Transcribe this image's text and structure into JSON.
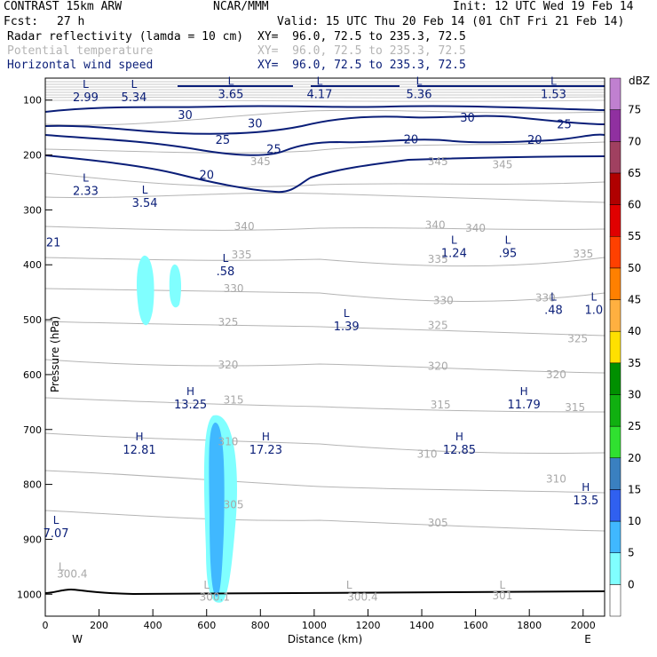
{
  "header": {
    "model": "CONTRAST 15km ARW",
    "org": "NCAR/MMM",
    "init": "Init: 12 UTC Wed 19 Feb 14",
    "fcst_label": "Fcst:",
    "fcst_value": "27 h",
    "valid": "Valid: 15 UTC Thu 20 Feb 14 (01 ChT Fri 21 Feb 14)"
  },
  "fields": [
    {
      "name": "Radar reflectivity (lamda = 10 cm)",
      "xy": "XY=  96.0, 72.5 to 235.3, 72.5",
      "color": "#000000"
    },
    {
      "name": "Potential temperature",
      "xy": "XY=  96.0, 72.5 to 235.3, 72.5",
      "color": "#b4b4b4"
    },
    {
      "name": "Horizontal wind speed",
      "xy": "XY=  96.0, 72.5 to 235.3, 72.5",
      "color": "#0a1e78"
    }
  ],
  "chart_data": {
    "type": "cross-section",
    "xlabel": "Distance (km)",
    "ylabel": "Pressure (hPa)",
    "xlim": [
      0,
      2080
    ],
    "ylim": [
      1040,
      60
    ],
    "x_ticks": [
      "0",
      "200",
      "400",
      "600",
      "800",
      "1000",
      "1200",
      "1400",
      "1600",
      "1800",
      "2000"
    ],
    "x_tick_values": [
      0,
      200,
      400,
      600,
      800,
      1000,
      1200,
      1400,
      1600,
      1800,
      2000
    ],
    "y_ticks": [
      "100",
      "200",
      "300",
      "400",
      "500",
      "600",
      "700",
      "800",
      "900",
      "1000"
    ],
    "y_tick_values": [
      100,
      200,
      300,
      400,
      500,
      600,
      700,
      800,
      900,
      1000
    ],
    "x_ends": {
      "west": "W",
      "east": "E"
    },
    "colorbar": {
      "unit": "dBZ",
      "levels": [
        "0",
        "5",
        "10",
        "15",
        "20",
        "25",
        "30",
        "35",
        "40",
        "45",
        "50",
        "55",
        "60",
        "65",
        "70",
        "75"
      ],
      "colors": [
        "#ffffff",
        "#80ffff",
        "#40b8ff",
        "#3060f0",
        "#3a80c0",
        "#30e030",
        "#10b010",
        "#009000",
        "#ffe000",
        "#ffb040",
        "#ff8000",
        "#ff4000",
        "#e00000",
        "#b00000",
        "#a04060",
        "#9030a0",
        "#c080d0"
      ]
    },
    "theta_labels": [
      {
        "text": "345",
        "x": 800,
        "p": 212
      },
      {
        "text": "345",
        "x": 1460,
        "p": 212
      },
      {
        "text": "345",
        "x": 1700,
        "p": 218
      },
      {
        "text": "340",
        "x": 740,
        "p": 330
      },
      {
        "text": "340",
        "x": 1450,
        "p": 328
      },
      {
        "text": "340",
        "x": 1600,
        "p": 333
      },
      {
        "text": "335",
        "x": 730,
        "p": 382
      },
      {
        "text": "335",
        "x": 1460,
        "p": 390
      },
      {
        "text": "335",
        "x": 2000,
        "p": 380
      },
      {
        "text": "330",
        "x": 700,
        "p": 443
      },
      {
        "text": "330",
        "x": 1480,
        "p": 465
      },
      {
        "text": "330",
        "x": 1860,
        "p": 460
      },
      {
        "text": "325",
        "x": 680,
        "p": 505
      },
      {
        "text": "325",
        "x": 1460,
        "p": 510
      },
      {
        "text": "325",
        "x": 1980,
        "p": 535
      },
      {
        "text": "320",
        "x": 680,
        "p": 582
      },
      {
        "text": "320",
        "x": 1460,
        "p": 585
      },
      {
        "text": "320",
        "x": 1900,
        "p": 600
      },
      {
        "text": "315",
        "x": 700,
        "p": 646
      },
      {
        "text": "315",
        "x": 1470,
        "p": 655
      },
      {
        "text": "315",
        "x": 1970,
        "p": 660
      },
      {
        "text": "310",
        "x": 680,
        "p": 722
      },
      {
        "text": "310",
        "x": 1420,
        "p": 745
      },
      {
        "text": "310",
        "x": 1900,
        "p": 790
      },
      {
        "text": "305",
        "x": 700,
        "p": 837
      },
      {
        "text": "305",
        "x": 1460,
        "p": 870
      },
      {
        "text": "300.4",
        "x": 100,
        "p": 963
      },
      {
        "text": "300.1",
        "x": 630,
        "p": 1005
      },
      {
        "text": "300.4",
        "x": 1180,
        "p": 1005
      },
      {
        "text": "301",
        "x": 1700,
        "p": 1003
      }
    ],
    "theta_lows": [
      {
        "text": "L",
        "x": 60,
        "p": 950
      },
      {
        "text": "L",
        "x": 600,
        "p": 983
      },
      {
        "text": "L",
        "x": 1130,
        "p": 983
      },
      {
        "text": "L",
        "x": 1700,
        "p": 983
      }
    ],
    "wind_labels": [
      {
        "text": "30",
        "x": 520,
        "p": 128
      },
      {
        "text": "30",
        "x": 780,
        "p": 143
      },
      {
        "text": "30",
        "x": 1570,
        "p": 133
      },
      {
        "text": "25",
        "x": 660,
        "p": 173
      },
      {
        "text": "25",
        "x": 850,
        "p": 190
      },
      {
        "text": "25",
        "x": 1930,
        "p": 145
      },
      {
        "text": "20",
        "x": 600,
        "p": 237
      },
      {
        "text": "20",
        "x": 1360,
        "p": 172
      },
      {
        "text": "20",
        "x": 1820,
        "p": 173
      },
      {
        "text": "21",
        "x": 30,
        "p": 360
      }
    ],
    "extrema": [
      {
        "type": "L",
        "value": "2.99",
        "x": 150,
        "p": 78
      },
      {
        "type": "L",
        "value": "5.34",
        "x": 330,
        "p": 78
      },
      {
        "type": "L",
        "value": "3.65",
        "x": 690,
        "p": 72
      },
      {
        "type": "L",
        "value": "4.17",
        "x": 1020,
        "p": 72
      },
      {
        "type": "L",
        "value": "5.36",
        "x": 1390,
        "p": 72
      },
      {
        "type": "L",
        "value": "1.53",
        "x": 1890,
        "p": 72
      },
      {
        "type": "L",
        "value": "2.33",
        "x": 150,
        "p": 248
      },
      {
        "type": "L",
        "value": "3.54",
        "x": 370,
        "p": 270
      },
      {
        "type": "L",
        "value": ".58",
        "x": 670,
        "p": 395
      },
      {
        "type": "L",
        "value": "1.24",
        "x": 1520,
        "p": 362
      },
      {
        "type": "L",
        "value": ".95",
        "x": 1720,
        "p": 362
      },
      {
        "type": "L",
        "value": ".48",
        "x": 1890,
        "p": 465
      },
      {
        "type": "L",
        "value": "1.0",
        "x": 2040,
        "p": 465
      },
      {
        "type": "L",
        "value": "1.39",
        "x": 1120,
        "p": 495
      },
      {
        "type": "H",
        "value": "13.25",
        "x": 540,
        "p": 637
      },
      {
        "type": "H",
        "value": "11.79",
        "x": 1780,
        "p": 637
      },
      {
        "type": "H",
        "value": "12.81",
        "x": 350,
        "p": 720
      },
      {
        "type": "H",
        "value": "17.23",
        "x": 820,
        "p": 720
      },
      {
        "type": "H",
        "value": "12.85",
        "x": 1540,
        "p": 720
      },
      {
        "type": "H",
        "value": "13.5",
        "x": 2010,
        "p": 812
      },
      {
        "type": "L",
        "value": "7.07",
        "x": 40,
        "p": 872
      }
    ]
  }
}
